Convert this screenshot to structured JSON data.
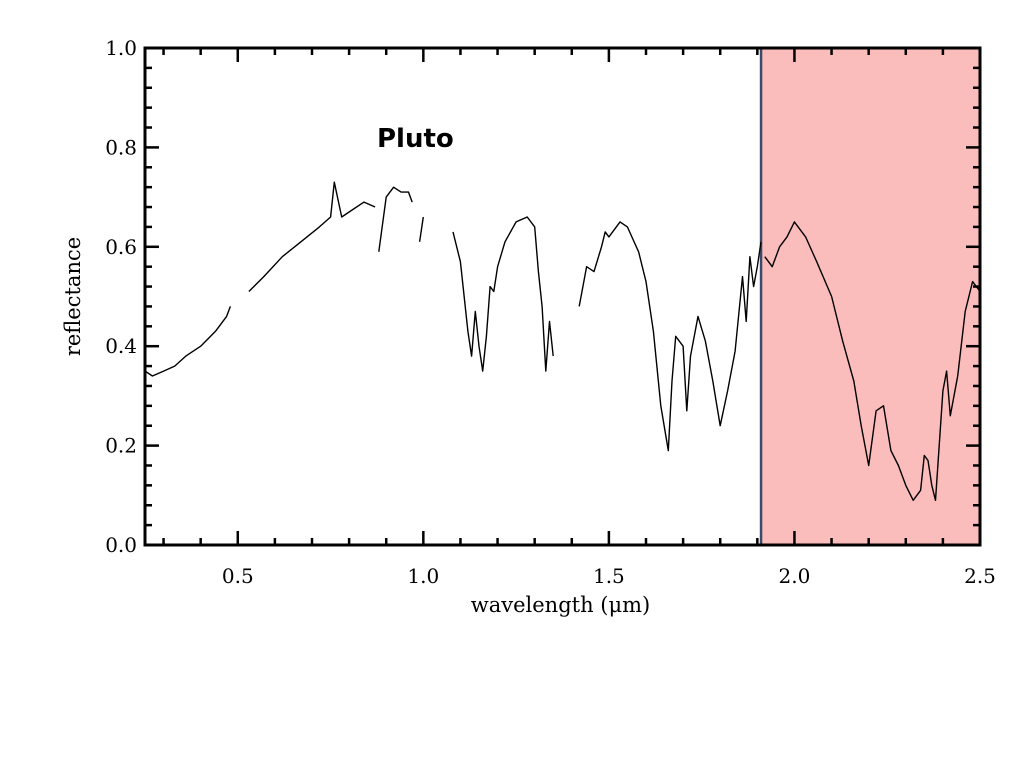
{
  "chart_data": {
    "type": "line",
    "annotation": "Pluto",
    "xlabel": "wavelength (μm)",
    "ylabel": "reflectance",
    "xlim": [
      0.25,
      2.5
    ],
    "ylim": [
      0.0,
      1.0
    ],
    "x_ticks": [
      {
        "value": 0.5,
        "label": "0.5"
      },
      {
        "value": 1.0,
        "label": "1.0"
      },
      {
        "value": 1.5,
        "label": "1.5"
      },
      {
        "value": 2.0,
        "label": "2.0"
      },
      {
        "value": 2.5,
        "label": "2.5"
      }
    ],
    "y_ticks": [
      {
        "value": 0.0,
        "label": "0.0"
      },
      {
        "value": 0.2,
        "label": "0.2"
      },
      {
        "value": 0.4,
        "label": "0.4"
      },
      {
        "value": 0.6,
        "label": "0.6"
      },
      {
        "value": 0.8,
        "label": "0.8"
      },
      {
        "value": 1.0,
        "label": "1.0"
      }
    ],
    "highlight": {
      "x_range": [
        1.91,
        2.5
      ],
      "y_range": [
        0.0,
        1.0
      ],
      "fill_color": "#fbbcbc",
      "border_color": "#3b4a6b"
    },
    "line_color": "#000000",
    "grid": false,
    "legend": "none",
    "segments": [
      {
        "x": [
          0.25,
          0.27,
          0.3,
          0.33,
          0.36,
          0.4,
          0.44,
          0.47,
          0.48
        ],
        "y": [
          0.35,
          0.34,
          0.35,
          0.36,
          0.38,
          0.4,
          0.43,
          0.46,
          0.48
        ]
      },
      {
        "x": [
          0.53,
          0.57,
          0.62,
          0.67,
          0.72,
          0.75,
          0.76,
          0.78,
          0.8,
          0.84,
          0.87
        ],
        "y": [
          0.51,
          0.54,
          0.58,
          0.61,
          0.64,
          0.66,
          0.73,
          0.66,
          0.67,
          0.69,
          0.68
        ]
      },
      {
        "x": [
          0.88,
          0.9,
          0.92,
          0.94,
          0.96,
          0.97
        ],
        "y": [
          0.59,
          0.7,
          0.72,
          0.71,
          0.71,
          0.69
        ]
      },
      {
        "x": [
          0.99,
          1.0
        ],
        "y": [
          0.61,
          0.66
        ]
      },
      {
        "x": [
          1.08,
          1.1,
          1.12,
          1.13,
          1.14,
          1.15,
          1.16,
          1.17,
          1.18,
          1.19,
          1.2,
          1.22,
          1.25,
          1.28,
          1.3,
          1.31,
          1.32,
          1.33,
          1.34,
          1.35
        ],
        "y": [
          0.63,
          0.57,
          0.43,
          0.38,
          0.47,
          0.4,
          0.35,
          0.42,
          0.52,
          0.51,
          0.56,
          0.61,
          0.65,
          0.66,
          0.64,
          0.55,
          0.48,
          0.35,
          0.45,
          0.38
        ]
      },
      {
        "x": [
          1.42,
          1.44,
          1.46,
          1.48,
          1.49,
          1.5,
          1.53,
          1.55,
          1.58,
          1.6,
          1.62,
          1.64,
          1.66,
          1.67,
          1.68,
          1.7,
          1.71,
          1.72,
          1.74,
          1.76,
          1.78,
          1.8,
          1.82,
          1.84,
          1.86,
          1.87,
          1.88,
          1.89,
          1.9,
          1.91
        ],
        "y": [
          0.48,
          0.56,
          0.55,
          0.6,
          0.63,
          0.62,
          0.65,
          0.64,
          0.59,
          0.53,
          0.43,
          0.28,
          0.19,
          0.33,
          0.42,
          0.4,
          0.27,
          0.38,
          0.46,
          0.41,
          0.33,
          0.24,
          0.31,
          0.39,
          0.54,
          0.45,
          0.58,
          0.52,
          0.56,
          0.61
        ]
      },
      {
        "x": [
          1.92,
          1.94,
          1.96,
          1.98,
          2.0,
          2.03,
          2.06,
          2.1,
          2.13,
          2.16,
          2.18,
          2.2,
          2.22,
          2.24,
          2.26,
          2.28,
          2.3,
          2.32,
          2.34,
          2.35,
          2.36,
          2.37,
          2.38,
          2.39,
          2.4,
          2.41,
          2.42,
          2.44,
          2.46,
          2.48,
          2.5
        ],
        "y": [
          0.58,
          0.56,
          0.6,
          0.62,
          0.65,
          0.62,
          0.57,
          0.5,
          0.41,
          0.33,
          0.24,
          0.16,
          0.27,
          0.28,
          0.19,
          0.16,
          0.12,
          0.09,
          0.11,
          0.18,
          0.17,
          0.12,
          0.09,
          0.2,
          0.31,
          0.35,
          0.26,
          0.34,
          0.47,
          0.53,
          0.51
        ]
      }
    ]
  }
}
